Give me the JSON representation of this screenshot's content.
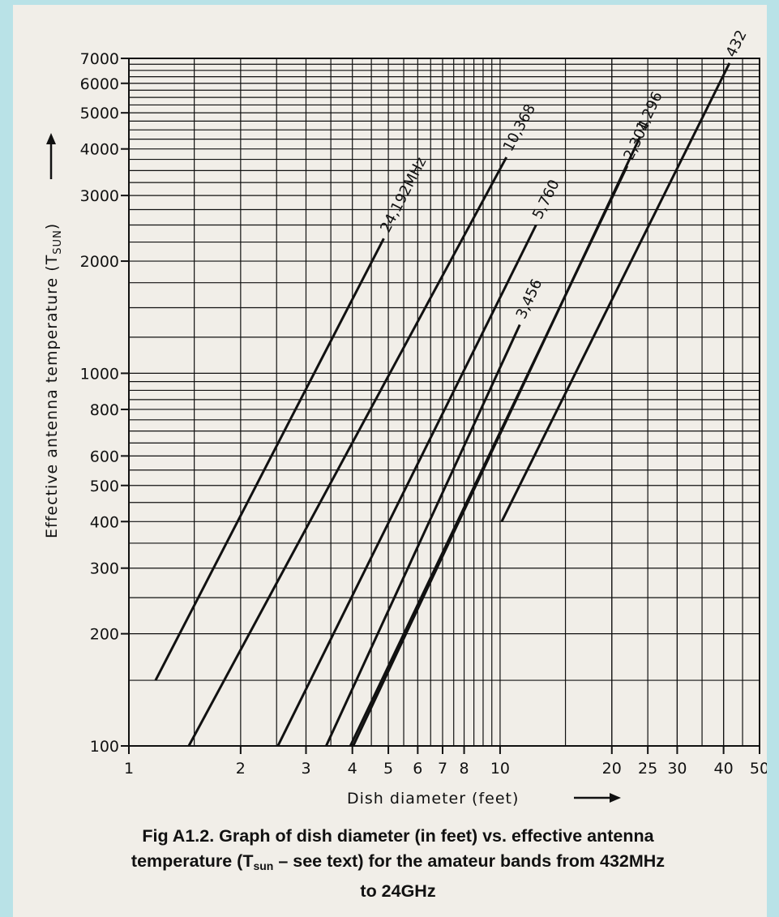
{
  "figure": {
    "caption_lines": [
      [
        "Fig A1.2. Graph of dish diameter (in feet) vs. effective antenna"
      ],
      [
        "temperature (T",
        "sun",
        " – see text) for the amateur bands from 432MHz"
      ],
      [
        "to 24GHz"
      ]
    ]
  },
  "chart_data": {
    "type": "line",
    "title": "",
    "xlabel": "Dish diameter (feet)",
    "ylabel": "Effective antenna temperature (T",
    "ylabel_sub": "SUN",
    "ylabel_close": ")",
    "x_scale": "log",
    "y_scale": "log",
    "xlim": [
      1,
      50
    ],
    "ylim": [
      100,
      7000
    ],
    "grid": true,
    "x_ticks": [
      1,
      2,
      3,
      4,
      5,
      6,
      7,
      8,
      10,
      20,
      25,
      30,
      40,
      50
    ],
    "x_tick_labels": [
      "1",
      "2",
      "3",
      "4",
      "5",
      "6",
      "7",
      "8",
      "10",
      "20",
      "25",
      "30",
      "40",
      "50"
    ],
    "y_ticks": [
      100,
      200,
      300,
      400,
      500,
      600,
      800,
      1000,
      2000,
      3000,
      4000,
      5000,
      6000,
      7000
    ],
    "y_tick_labels": [
      "100",
      "200",
      "300",
      "400",
      "500",
      "600",
      "800",
      "1000",
      "2000",
      "3000",
      "4000",
      "5000",
      "6000",
      "7000"
    ],
    "series": [
      {
        "name": "24,192MHz",
        "x": [
          1.18,
          4.86
        ],
        "y": [
          150,
          2300
        ]
      },
      {
        "name": "10,368",
        "x": [
          1.45,
          10.4
        ],
        "y": [
          100,
          3800
        ]
      },
      {
        "name": "5,760",
        "x": [
          2.52,
          12.5
        ],
        "y": [
          100,
          2500
        ]
      },
      {
        "name": "3,456",
        "x": [
          3.4,
          11.3
        ],
        "y": [
          100,
          1350
        ]
      },
      {
        "name": "2,304",
        "x": [
          3.95,
          22.0
        ],
        "y": [
          100,
          3600
        ]
      },
      {
        "name": "1,296",
        "x": [
          4.02,
          23.8
        ],
        "y": [
          100,
          4300
        ]
      },
      {
        "name": "432",
        "x": [
          10.1,
          41.5
        ],
        "y": [
          400,
          6800
        ]
      }
    ]
  },
  "colors": {
    "page": "#f1eee8",
    "border": "#b9e2e7",
    "ink": "#111111"
  }
}
